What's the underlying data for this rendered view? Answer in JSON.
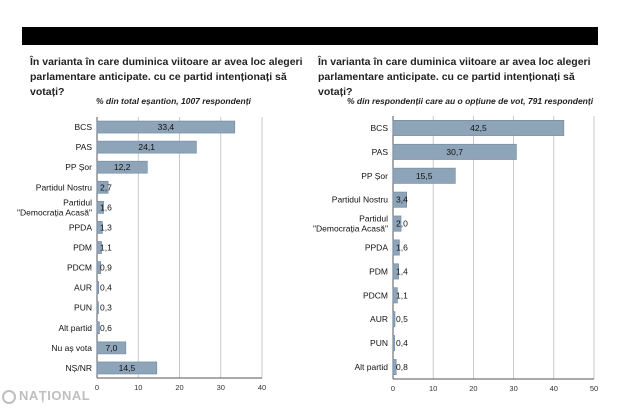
{
  "logo_text": "NAȚIONAL",
  "chart_data": [
    {
      "type": "bar",
      "orientation": "horizontal",
      "title": "În varianta în care duminica viitoare ar avea loc alegeri parlamentare anticipate. cu ce partid intenționați să votați?",
      "subtitle": "% din total eșantion, 1007 respondenți",
      "categories": [
        "BCS",
        "PAS",
        "PP Șor",
        "Partidul Nostru",
        "Partidul \"Democrația Acasă\"",
        "PPDA",
        "PDM",
        "PDCM",
        "AUR",
        "PUN",
        "Alt partid",
        "Nu aș vota",
        "NȘ/NR"
      ],
      "category_lines": [
        [
          "BCS"
        ],
        [
          "PAS"
        ],
        [
          "PP Șor"
        ],
        [
          "Partidul Nostru"
        ],
        [
          "Partidul",
          "\"Democrația Acasă\""
        ],
        [
          "PPDA"
        ],
        [
          "PDM"
        ],
        [
          "PDCM"
        ],
        [
          "AUR"
        ],
        [
          "PUN"
        ],
        [
          "Alt partid"
        ],
        [
          "Nu aș vota"
        ],
        [
          "NȘ/NR"
        ]
      ],
      "values": [
        33.4,
        24.1,
        12.2,
        2.7,
        1.6,
        1.3,
        1.1,
        0.9,
        0.4,
        0.3,
        0.6,
        7.0,
        14.5
      ],
      "labels": [
        "33,4",
        "24,1",
        "12,2",
        "2,7",
        "1,6",
        "1,3",
        "1,1",
        "0,9",
        "0,4",
        "0,3",
        "0,6",
        "7,0",
        "14,5"
      ],
      "xticks": [
        "0",
        "10",
        "20",
        "30",
        "40"
      ],
      "xlim": [
        0,
        40
      ],
      "grid": true,
      "bar_color": "#8ea4b9"
    },
    {
      "type": "bar",
      "orientation": "horizontal",
      "title": "În varianta în care duminica viitoare ar avea loc alegeri parlamentare anticipate. cu ce partid intenționați să votați?",
      "subtitle": "% din respondenții care au o opțiune de vot, 791 respondenți",
      "categories": [
        "BCS",
        "PAS",
        "PP Șor",
        "Partidul Nostru",
        "Partidul \"Democrația Acasă\"",
        "PPDA",
        "PDM",
        "PDCM",
        "AUR",
        "PUN",
        "Alt partid"
      ],
      "category_lines": [
        [
          "BCS"
        ],
        [
          "PAS"
        ],
        [
          "PP Șor"
        ],
        [
          "Partidul Nostru"
        ],
        [
          "Partidul",
          "\"Democrația Acasă\""
        ],
        [
          "PPDA"
        ],
        [
          "PDM"
        ],
        [
          "PDCM"
        ],
        [
          "AUR"
        ],
        [
          "PUN"
        ],
        [
          "Alt partid"
        ]
      ],
      "values": [
        42.5,
        30.7,
        15.5,
        3.4,
        2.0,
        1.6,
        1.4,
        1.1,
        0.5,
        0.4,
        0.8
      ],
      "labels": [
        "42,5",
        "30,7",
        "15,5",
        "3,4",
        "2,0",
        "1,6",
        "1,4",
        "1,1",
        "0,5",
        "0,4",
        "0,8"
      ],
      "xticks": [
        "0",
        "10",
        "20",
        "30",
        "40",
        "50"
      ],
      "xlim": [
        0,
        50
      ],
      "grid": true,
      "bar_color": "#8ea4b9"
    }
  ]
}
